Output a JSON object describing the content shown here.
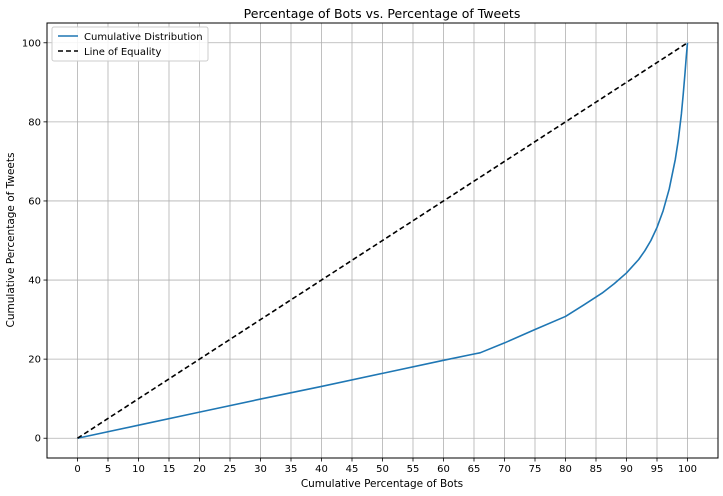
{
  "chart_data": {
    "type": "line",
    "title": "Percentage of Bots vs. Percentage of Tweets",
    "xlabel": "Cumulative Percentage of Bots",
    "ylabel": "Cumulative Percentage of Tweets",
    "xlim": [
      -5,
      105
    ],
    "ylim": [
      -5,
      105
    ],
    "xticks": [
      0,
      5,
      10,
      15,
      20,
      25,
      30,
      35,
      40,
      45,
      50,
      55,
      60,
      65,
      70,
      75,
      80,
      85,
      90,
      95,
      100
    ],
    "yticks": [
      0,
      20,
      40,
      60,
      80,
      100
    ],
    "grid": true,
    "legend_position": "top-left",
    "series": [
      {
        "name": "Cumulative Distribution",
        "color": "#1f77b4",
        "style": "solid",
        "x": [
          0,
          10,
          20,
          30,
          40,
          50,
          60,
          65,
          66,
          70,
          75,
          80,
          83,
          86,
          88,
          90,
          92,
          93,
          94,
          95,
          96,
          97,
          98,
          98.5,
          99,
          99.3,
          99.6,
          99.8,
          100
        ],
        "y": [
          0,
          3.3,
          6.6,
          9.9,
          13.1,
          16.4,
          19.7,
          21.3,
          21.6,
          24.1,
          27.5,
          30.8,
          33.7,
          36.7,
          39.1,
          41.8,
          45.2,
          47.4,
          50.0,
          53.3,
          57.5,
          63.0,
          70.5,
          75.5,
          82.0,
          87.0,
          92.5,
          96.5,
          100
        ]
      },
      {
        "name": "Line of Equality",
        "color": "#000000",
        "style": "dashed",
        "x": [
          0,
          100
        ],
        "y": [
          0,
          100
        ]
      }
    ]
  }
}
